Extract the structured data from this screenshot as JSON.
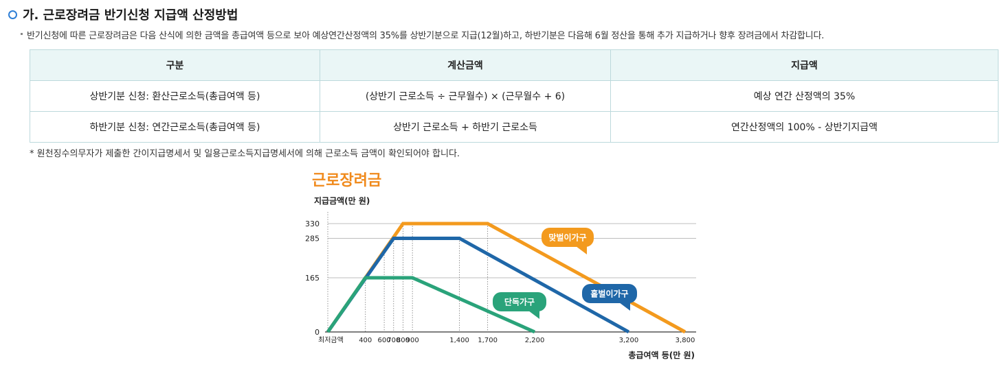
{
  "section": {
    "title": "가. 근로장려금 반기신청 지급액 산정방법",
    "description": "반기신청에 따른 근로장려금은 다음 산식에 의한 금액을 총급여액 등으로 보아 예상연간산정액의 35%를 상반기분으로 지급(12월)하고, 하반기분은 다음해 6월 정산을 통해 추가 지급하거나 향후 장려금에서 차감합니다."
  },
  "table": {
    "headers": [
      "구분",
      "계산금액",
      "지급액"
    ],
    "rows": [
      [
        "상반기분 신청: 환산근로소득(총급여액 등)",
        "(상반기 근로소득 ÷ 근무월수) × (근무월수 + 6)",
        "예상 연간 산정액의 35%"
      ],
      [
        "하반기분 신청: 연간근로소득(총급여액 등)",
        "상반기 근로소득 + 하반기 근로소득",
        "연간산정액의 100% - 상반기지급액"
      ]
    ]
  },
  "note": "* 원천징수의무자가 제출한 간이지급명세서 및 일용근로소득지급명세서에 의해 근로소득 금액이 확인되어야 합니다.",
  "chart_data": {
    "type": "line",
    "title": "근로장려금",
    "ylabel": "지급금액(만 원)",
    "xlabel": "총급여액 등(만 원)",
    "ylim": [
      0,
      330
    ],
    "xlim": [
      0,
      3800
    ],
    "y_ticks": [
      0,
      165,
      285,
      330
    ],
    "x_ticks": [
      {
        "v": 0,
        "label": "최저금액"
      },
      {
        "v": 400,
        "label": "400"
      },
      {
        "v": 600,
        "label": "600"
      },
      {
        "v": 700,
        "label": "700"
      },
      {
        "v": 800,
        "label": "800"
      },
      {
        "v": 900,
        "label": "900"
      },
      {
        "v": 1400,
        "label": "1,400"
      },
      {
        "v": 1700,
        "label": "1,700"
      },
      {
        "v": 2200,
        "label": "2,200"
      },
      {
        "v": 3200,
        "label": "3,200"
      },
      {
        "v": 3800,
        "label": "3,800"
      }
    ],
    "series": [
      {
        "name": "맞벌이가구",
        "color": "#f39a1e",
        "points": [
          [
            0,
            0
          ],
          [
            800,
            330
          ],
          [
            1700,
            330
          ],
          [
            3800,
            0
          ]
        ]
      },
      {
        "name": "홑벌이가구",
        "color": "#1f67a8",
        "points": [
          [
            0,
            0
          ],
          [
            700,
            285
          ],
          [
            1400,
            285
          ],
          [
            3200,
            0
          ]
        ]
      },
      {
        "name": "단독가구",
        "color": "#2aa37a",
        "points": [
          [
            0,
            0
          ],
          [
            400,
            165
          ],
          [
            900,
            165
          ],
          [
            2200,
            0
          ]
        ]
      }
    ],
    "title_color": "#f08a1c"
  }
}
